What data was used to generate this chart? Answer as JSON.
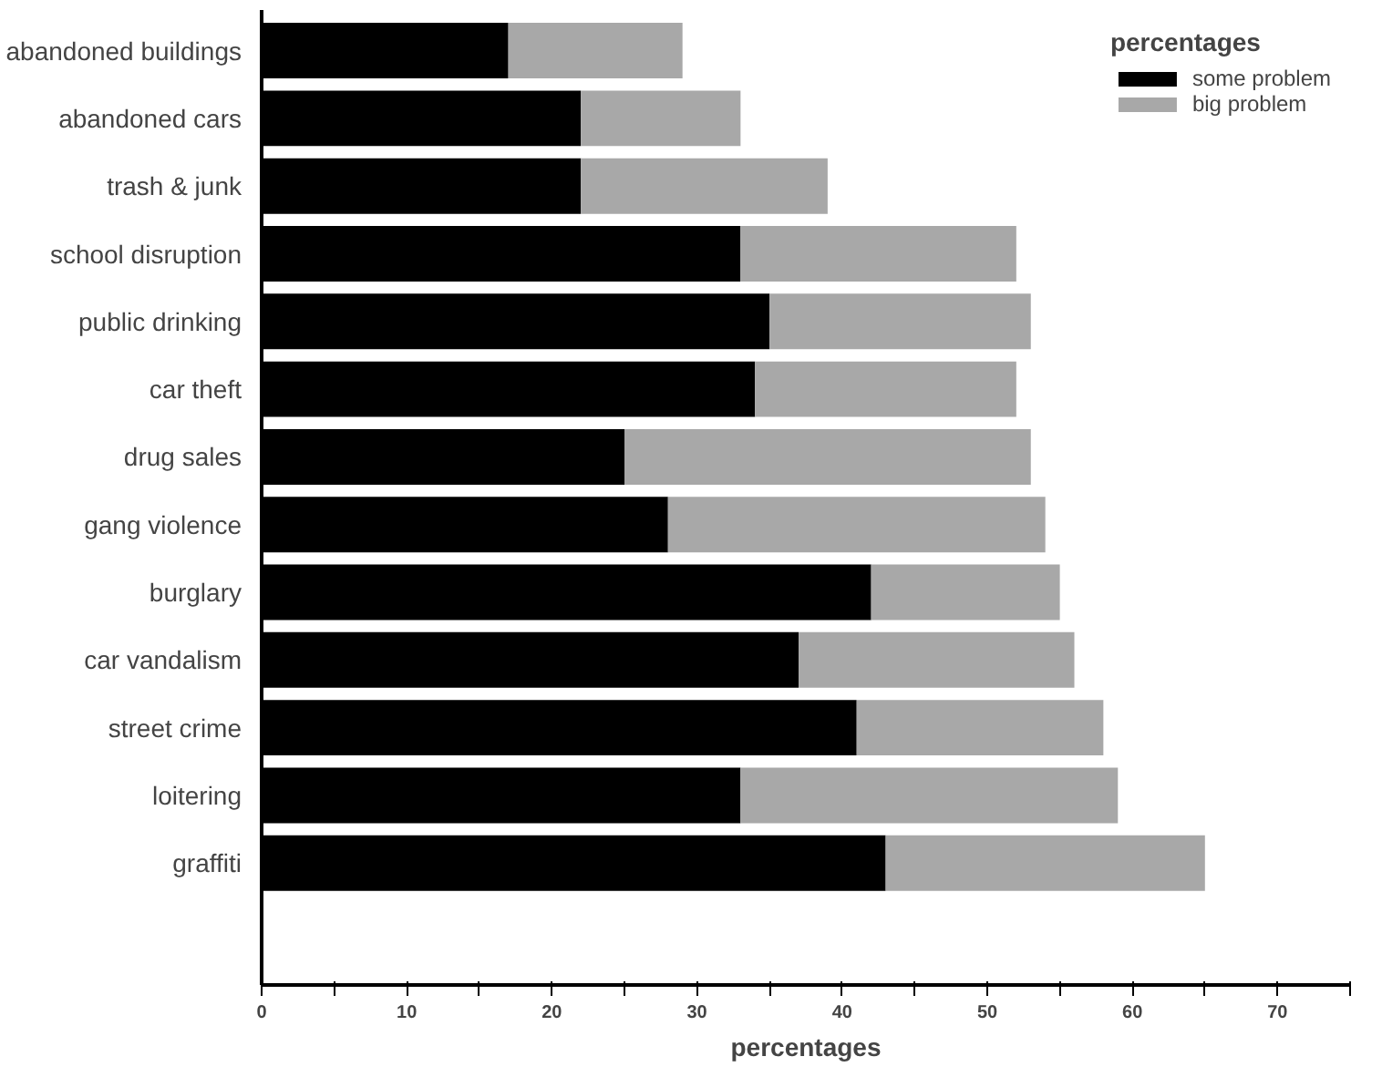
{
  "chart_data": {
    "type": "bar",
    "orientation": "horizontal",
    "stacked": true,
    "categories": [
      "abandoned buildings",
      "abandoned cars",
      "trash & junk",
      "school disruption",
      "public drinking",
      "car theft",
      "drug sales",
      "gang violence",
      "burglary",
      "car vandalism",
      "street crime",
      "loitering",
      "graffiti"
    ],
    "series": [
      {
        "name": "some problem",
        "color": "#000000",
        "values": [
          17,
          22,
          22,
          33,
          35,
          34,
          25,
          28,
          42,
          37,
          41,
          33,
          43
        ]
      },
      {
        "name": "big problem",
        "color": "#a8a8a8",
        "values": [
          12,
          11,
          17,
          19,
          18,
          18,
          28,
          26,
          13,
          19,
          17,
          26,
          22
        ]
      }
    ],
    "xlabel": "percentages",
    "legend_title": "percentages",
    "legend": "top right",
    "xlim": [
      0,
      75
    ],
    "xticks": [
      0,
      {
        "value": 5,
        "label": null
      },
      10,
      {
        "value": 15,
        "label": null
      },
      20,
      {
        "value": 25,
        "label": null
      },
      30,
      {
        "value": 35,
        "label": null
      },
      40,
      {
        "value": 45,
        "label": null
      },
      50,
      {
        "value": 55,
        "label": null
      },
      60,
      {
        "value": 65,
        "label": null
      },
      70,
      {
        "value": 75,
        "label": null
      }
    ],
    "grid": false
  }
}
